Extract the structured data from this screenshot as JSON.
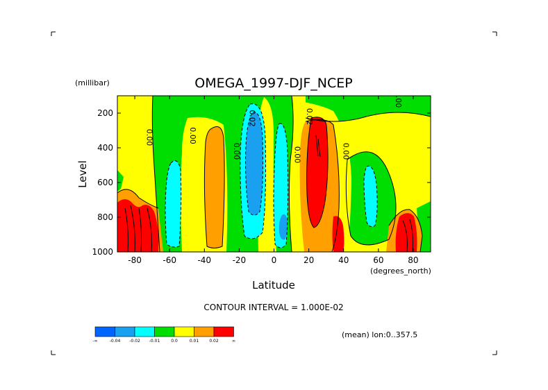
{
  "chart_data": {
    "type": "heatmap",
    "title": "OMEGA_1997-DJF_NCEP",
    "xlabel": "Latitude",
    "ylabel": "Level",
    "y_units": "(millibar)",
    "x_units": "(degrees_north)",
    "xlim": [
      -90,
      90
    ],
    "ylim": [
      1000,
      100
    ],
    "x_ticks": [
      -80,
      -60,
      -40,
      -20,
      0,
      20,
      40,
      60,
      80
    ],
    "x_tick_labels": [
      "-80",
      "-60",
      "-40",
      "-20",
      "0",
      "20",
      "40",
      "60",
      "80"
    ],
    "y_ticks": [
      200,
      400,
      600,
      800,
      1000
    ],
    "y_tick_labels": [
      "200",
      "400",
      "600",
      "800",
      "1000"
    ],
    "contour_interval_text": "CONTOUR INTERVAL = 1.000E-02",
    "mean_text": "(mean) lon:0..357.5",
    "colorbar": {
      "colors": [
        "#0064ff",
        "#1aa0f0",
        "#00ffff",
        "#00dd00",
        "#ffff00",
        "#ffa000",
        "#ff0000"
      ],
      "labels": [
        "-∞",
        "-0.04",
        "-0.02",
        "-0.01",
        "0.0",
        "0.01",
        "0.02",
        "∞"
      ]
    },
    "contour_labels": [
      {
        "text": "0.00",
        "lat": -73,
        "lev": 340
      },
      {
        "text": "0.00",
        "lat": -48,
        "lev": 330
      },
      {
        "text": "0.00",
        "lat": -23,
        "lev": 420
      },
      {
        "text": "0.02",
        "lat": -14,
        "lev": 230
      },
      {
        "text": "0.00",
        "lat": 12,
        "lev": 440
      },
      {
        "text": "0.02",
        "lat": 19,
        "lev": 220
      },
      {
        "text": "0.00",
        "lat": 40,
        "lev": 420
      },
      {
        "text": "0.00",
        "lat": 70,
        "lev": 120
      }
    ],
    "regions": [
      {
        "level": "-0.02..-0.01",
        "color": "#00ffff",
        "lat_range": [
          -62,
          -52
        ],
        "lev_range": [
          460,
          1000
        ]
      },
      {
        "level": "-0.04..-0.02",
        "color": "#1aa0f0",
        "lat_range": [
          -22,
          -5
        ],
        "lev_range": [
          150,
          800
        ]
      },
      {
        "level": "-0.02..-0.01",
        "color": "#00ffff",
        "lat_range": [
          3,
          12
        ],
        "lev_range": [
          600,
          1000
        ]
      },
      {
        "level": "0.01..0.02",
        "color": "#ffa000",
        "lat_range": [
          -43,
          -30
        ],
        "lev_range": [
          260,
          960
        ]
      },
      {
        "level": ">0.02",
        "color": "#ff0000",
        "lat_range": [
          18,
          32
        ],
        "lev_range": [
          220,
          880
        ]
      },
      {
        "level": ">0.02",
        "color": "#ff0000",
        "lat_range": [
          -90,
          -63
        ],
        "lev_range": [
          690,
          1000
        ]
      },
      {
        "level": ">0.02",
        "color": "#ff0000",
        "lat_range": [
          72,
          85
        ],
        "lev_range": [
          740,
          1000
        ]
      }
    ]
  }
}
